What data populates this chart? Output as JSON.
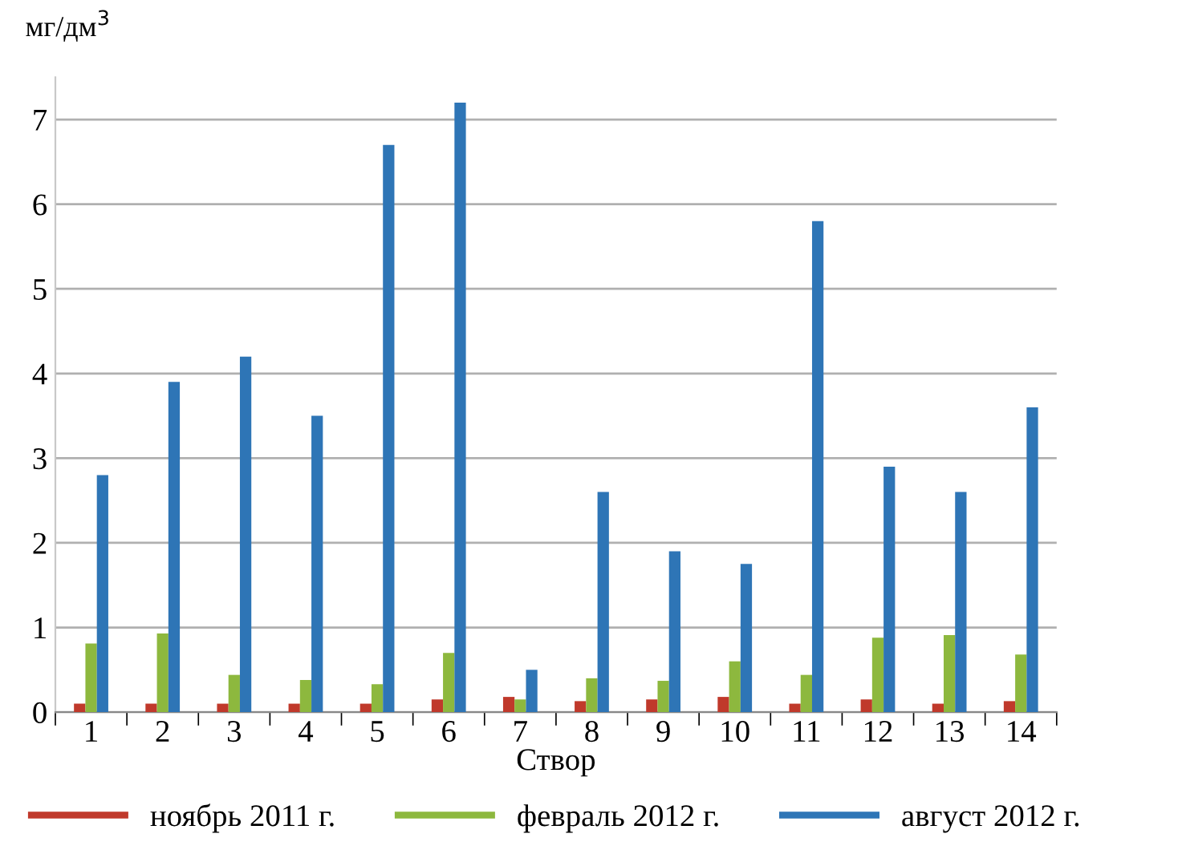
{
  "chart_data": {
    "type": "bar",
    "ylabel": "мг/дм$^{3}$",
    "xlabel": "Створ",
    "categories": [
      "1",
      "2",
      "3",
      "4",
      "5",
      "6",
      "7",
      "8",
      "9",
      "10",
      "11",
      "12",
      "13",
      "14"
    ],
    "series": [
      {
        "name": "ноябрь 2011 г.",
        "color": "#c0392b",
        "values": [
          0.1,
          0.1,
          0.1,
          0.1,
          0.1,
          0.15,
          0.18,
          0.13,
          0.15,
          0.18,
          0.1,
          0.15,
          0.1,
          0.13
        ]
      },
      {
        "name": "февраль 2012 г.",
        "color": "#8db83e",
        "values": [
          0.81,
          0.93,
          0.44,
          0.38,
          0.33,
          0.7,
          0.15,
          0.4,
          0.37,
          0.6,
          0.44,
          0.88,
          0.91,
          0.68
        ]
      },
      {
        "name": "август 2012 г.",
        "color": "#2e75b6",
        "values": [
          2.8,
          3.9,
          4.2,
          3.5,
          6.7,
          7.2,
          0.5,
          2.6,
          1.9,
          1.75,
          5.8,
          2.9,
          2.6,
          3.6
        ]
      }
    ],
    "ylim": [
      0,
      7.5
    ],
    "yticks": [
      0,
      1,
      2,
      3,
      4,
      5,
      6,
      7
    ],
    "grid": "y",
    "legend": "bottom"
  }
}
